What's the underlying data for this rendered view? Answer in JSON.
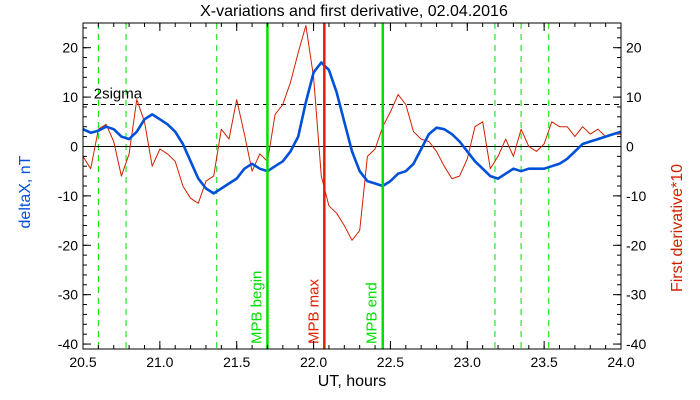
{
  "chart_data": {
    "type": "line",
    "title": "X-variations and first derivative, 02.04.2016",
    "xlabel": "UT, hours",
    "ylabel_left": "deltaX, nT",
    "ylabel_right": "First derivative*10",
    "xlim": [
      20.5,
      24.0
    ],
    "ylim": [
      -41,
      25
    ],
    "x_ticks": [
      20.5,
      21.0,
      21.5,
      22.0,
      22.5,
      23.0,
      23.5,
      24.0
    ],
    "x_tick_labels": [
      "20.5",
      "21.0",
      "21.5",
      "22.0",
      "22.5",
      "23.0",
      "23.5",
      "24.0"
    ],
    "y_ticks": [
      -40,
      -30,
      -20,
      -10,
      0,
      10,
      20
    ],
    "y_tick_labels": [
      "-40",
      "-30",
      "-20",
      "-10",
      "0",
      "10",
      "20"
    ],
    "colors": {
      "deltaX": "#0050d8",
      "derivative": "#d02000",
      "mpb": "#00e000",
      "max": "#e02000",
      "threshold": "#000000"
    },
    "series": [
      {
        "name": "deltaX, nT",
        "axis": "left",
        "x": [
          20.5,
          20.55,
          20.6,
          20.65,
          20.7,
          20.75,
          20.8,
          20.85,
          20.9,
          20.95,
          21.0,
          21.05,
          21.1,
          21.15,
          21.2,
          21.25,
          21.3,
          21.35,
          21.4,
          21.45,
          21.5,
          21.55,
          21.6,
          21.65,
          21.7,
          21.75,
          21.8,
          21.85,
          21.9,
          21.95,
          22.0,
          22.05,
          22.1,
          22.15,
          22.2,
          22.25,
          22.3,
          22.35,
          22.4,
          22.45,
          22.5,
          22.55,
          22.6,
          22.65,
          22.7,
          22.75,
          22.8,
          22.85,
          22.9,
          22.95,
          23.0,
          23.05,
          23.1,
          23.15,
          23.2,
          23.25,
          23.3,
          23.35,
          23.4,
          23.45,
          23.5,
          23.55,
          23.6,
          23.65,
          23.7,
          23.75,
          23.8,
          23.85,
          23.9,
          23.95,
          24.0
        ],
        "values": [
          3.5,
          2.8,
          3.2,
          4.0,
          3.5,
          2.0,
          1.5,
          3.0,
          5.5,
          6.5,
          5.5,
          4.5,
          3.0,
          0.5,
          -3.0,
          -6.5,
          -8.5,
          -9.5,
          -8.5,
          -7.5,
          -6.5,
          -4.5,
          -3.5,
          -4.5,
          -5.0,
          -4.0,
          -3.0,
          -1.0,
          2.0,
          9.0,
          15.0,
          17.0,
          15.5,
          11.0,
          5.0,
          -1.0,
          -5.0,
          -7.0,
          -7.5,
          -8.0,
          -7.0,
          -5.5,
          -5.0,
          -3.5,
          -0.5,
          2.5,
          3.8,
          3.5,
          2.5,
          1.0,
          -1.0,
          -3.0,
          -4.5,
          -6.0,
          -6.5,
          -5.5,
          -4.5,
          -5.0,
          -4.5,
          -4.5,
          -4.5,
          -4.0,
          -3.5,
          -2.5,
          -1.0,
          0.5,
          1.0,
          1.5,
          2.0,
          2.5,
          3.0
        ]
      },
      {
        "name": "First derivative*10",
        "axis": "right",
        "x": [
          20.5,
          20.55,
          20.6,
          20.65,
          20.7,
          20.75,
          20.8,
          20.85,
          20.9,
          20.95,
          21.0,
          21.05,
          21.1,
          21.15,
          21.2,
          21.25,
          21.3,
          21.35,
          21.4,
          21.45,
          21.5,
          21.55,
          21.6,
          21.65,
          21.7,
          21.75,
          21.8,
          21.85,
          21.9,
          21.95,
          22.0,
          22.05,
          22.1,
          22.15,
          22.2,
          22.25,
          22.3,
          22.35,
          22.4,
          22.45,
          22.5,
          22.55,
          22.6,
          22.65,
          22.7,
          22.75,
          22.8,
          22.85,
          22.9,
          22.95,
          23.0,
          23.05,
          23.1,
          23.15,
          23.2,
          23.25,
          23.3,
          23.35,
          23.4,
          23.45,
          23.5,
          23.55,
          23.6,
          23.65,
          23.7,
          23.75,
          23.8,
          23.85,
          23.9,
          23.95,
          24.0
        ],
        "values": [
          -2.0,
          -4.5,
          3.5,
          4.5,
          1.0,
          -6.0,
          -1.5,
          9.5,
          5.0,
          -4.0,
          -0.5,
          -1.5,
          -3.0,
          -8.0,
          -10.5,
          -11.5,
          -7.0,
          -6.0,
          3.5,
          1.5,
          9.5,
          2.5,
          -5.0,
          -1.5,
          -3.0,
          6.5,
          8.5,
          13.0,
          19.0,
          24.5,
          14.0,
          -6.0,
          -12.0,
          -13.5,
          -16.0,
          -19.0,
          -17.0,
          -2.0,
          -0.5,
          4.0,
          7.0,
          10.5,
          8.5,
          3.0,
          1.5,
          1.0,
          -1.0,
          -4.0,
          -6.5,
          -6.0,
          -2.5,
          4.0,
          5.0,
          -4.5,
          -2.0,
          1.5,
          -2.0,
          3.5,
          0.0,
          -1.0,
          0.5,
          5.0,
          4.0,
          4.0,
          2.0,
          4.0,
          2.5,
          3.5,
          2.0,
          2.5,
          2.5
        ]
      }
    ],
    "reference_lines": [
      {
        "label": "2sigma",
        "axis": "left",
        "y": 8.5,
        "style": "dashed"
      },
      {
        "label": "",
        "axis": "left",
        "y": 0,
        "style": "solid"
      }
    ],
    "vertical_lines_dashed": [
      20.6,
      20.78,
      21.37,
      23.18,
      23.35,
      23.53
    ],
    "markers": [
      {
        "label": "MPB begin",
        "x": 21.7,
        "role": "mpb"
      },
      {
        "label": "MPB max",
        "x": 22.07,
        "role": "max"
      },
      {
        "label": "MPB end",
        "x": 22.45,
        "role": "mpb"
      }
    ],
    "grid": false,
    "legend": "none"
  }
}
